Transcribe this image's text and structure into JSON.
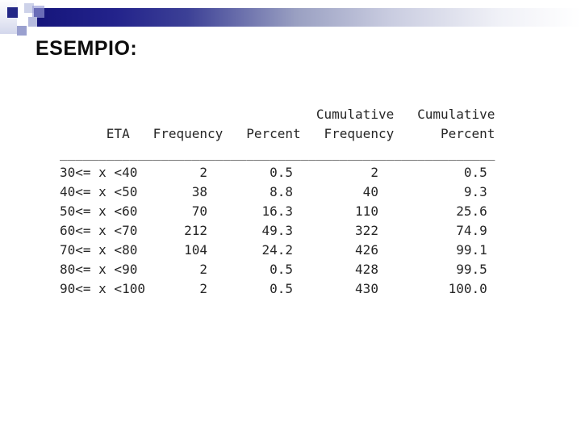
{
  "title": "ESEMPIO:",
  "colors": {
    "bar_gradient_start": "#15157b",
    "bar_gradient_end": "#ffffff",
    "accent_navy_square": "#232786",
    "table_text": "#262626",
    "title_text": "#0d0d0d",
    "background": "#ffffff"
  },
  "table": {
    "header_top": [
      "Cumulative",
      "Cumulative"
    ],
    "header": [
      "ETA",
      "Frequency",
      "Percent",
      "Frequency",
      "Percent"
    ],
    "rows": [
      [
        "30<= x <40",
        "2",
        "0.5",
        "2",
        "0.5"
      ],
      [
        "40<= x <50",
        "38",
        "8.8",
        "40",
        "9.3"
      ],
      [
        "50<= x <60",
        "70",
        "16.3",
        "110",
        "25.6"
      ],
      [
        "60<= x <70",
        "212",
        "49.3",
        "322",
        "74.9"
      ],
      [
        "70<= x <80",
        "104",
        "24.2",
        "426",
        "99.1"
      ],
      [
        "80<= x <90",
        "2",
        "0.5",
        "428",
        "99.5"
      ],
      [
        "90<= x <100",
        "2",
        "0.5",
        "430",
        "100.0"
      ]
    ],
    "layout": {
      "header_top_ends": [
        42,
        55
      ],
      "header_ends": [
        8,
        20,
        30,
        42,
        55
      ],
      "value_ends": [
        18,
        29,
        40,
        54
      ],
      "separator_char": "_",
      "separator_width": 56
    }
  }
}
